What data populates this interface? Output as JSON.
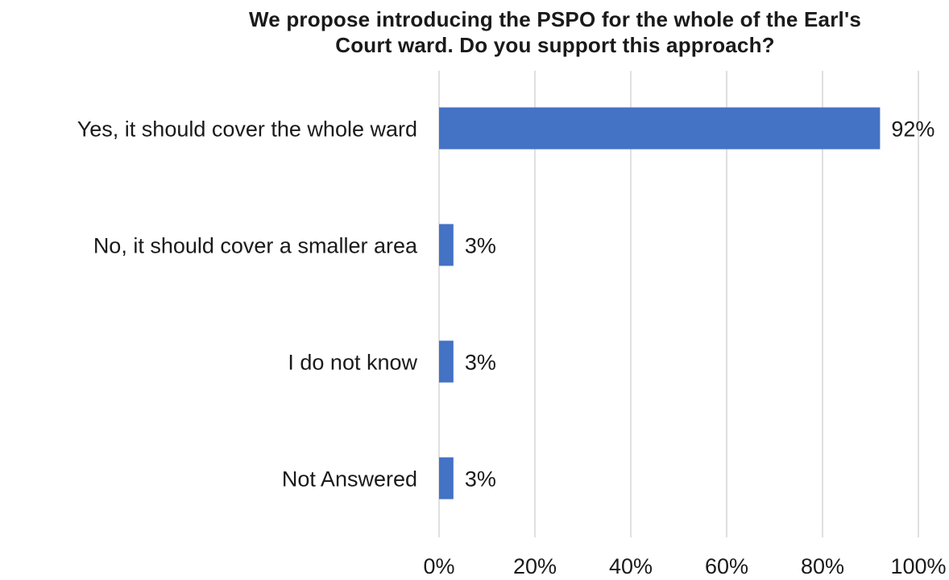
{
  "chart_data": {
    "type": "bar",
    "orientation": "horizontal",
    "title": {
      "line1": "We propose introducing the PSPO for the whole of the Earl's",
      "line2": "Court ward. Do you support this approach?"
    },
    "categories": [
      "Yes, it should cover the whole ward",
      "No, it should cover a smaller area",
      "I do not know",
      "Not Answered"
    ],
    "values": [
      92,
      3,
      3,
      3
    ],
    "value_labels": [
      "92%",
      "3%",
      "3%",
      "3%"
    ],
    "xlim": [
      0,
      100
    ],
    "x_ticks": [
      "0%",
      "20%",
      "40%",
      "60%",
      "80%",
      "100%"
    ],
    "grid": "vertical",
    "legend": "none",
    "xlabel": "",
    "ylabel": "",
    "bar_color": "#4472c4",
    "grid_color": "#d0d0d0"
  }
}
